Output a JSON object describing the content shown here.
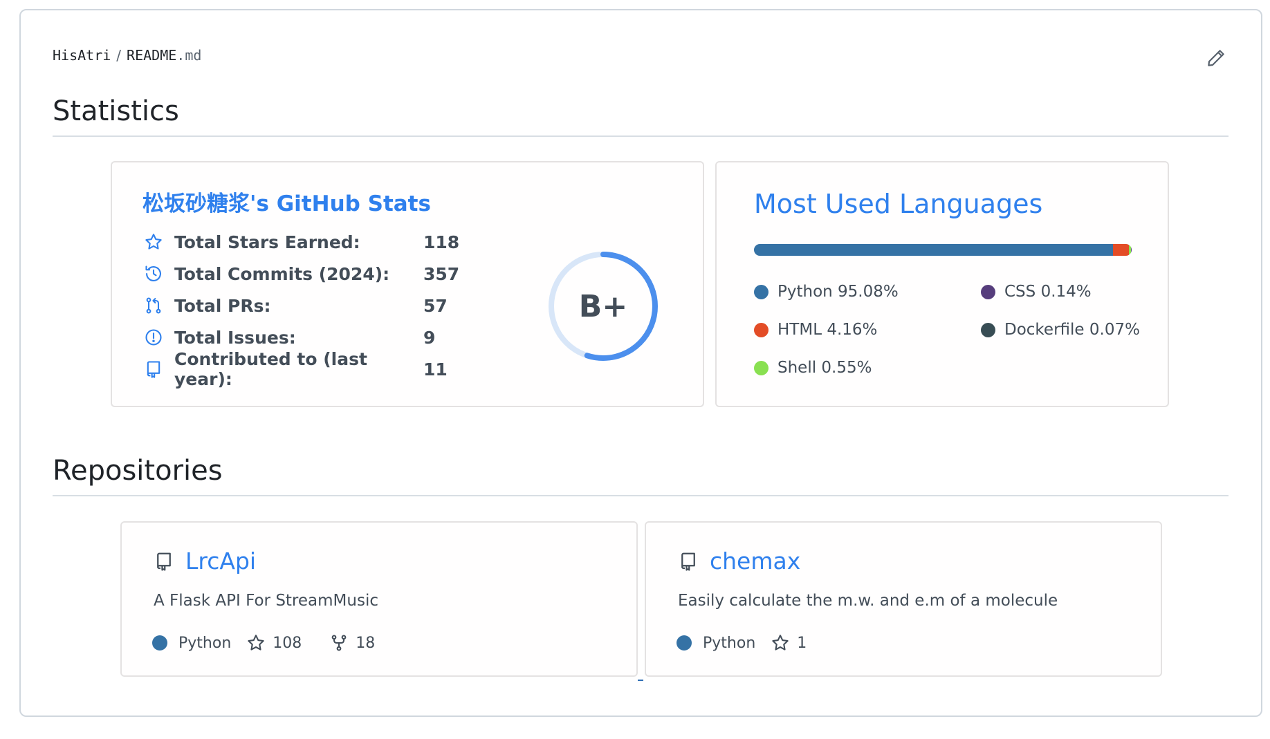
{
  "breadcrumb": {
    "owner": "HisAtri",
    "separator": "/",
    "file_base": "README",
    "file_ext": ".md"
  },
  "sections": {
    "statistics": "Statistics",
    "repositories": "Repositories"
  },
  "stats_card": {
    "title": "松坂砂糖浆's GitHub Stats",
    "rows": [
      {
        "icon": "star-icon",
        "label": "Total Stars Earned:",
        "value": "118"
      },
      {
        "icon": "history-icon",
        "label": "Total Commits (2024):",
        "value": "357"
      },
      {
        "icon": "pull-request-icon",
        "label": "Total PRs:",
        "value": "57"
      },
      {
        "icon": "issue-icon",
        "label": "Total Issues:",
        "value": "9"
      },
      {
        "icon": "repo-icon",
        "label": "Contributed to (last year):",
        "value": "11"
      }
    ],
    "rank": "B+",
    "rank_progress": 0.55
  },
  "languages_card": {
    "title": "Most Used Languages",
    "languages": [
      {
        "name": "Python",
        "percent": 95.08,
        "label": "Python 95.08%",
        "color": "#3572A5"
      },
      {
        "name": "HTML",
        "percent": 4.16,
        "label": "HTML 4.16%",
        "color": "#e34c26"
      },
      {
        "name": "Shell",
        "percent": 0.55,
        "label": "Shell 0.55%",
        "color": "#89e051"
      },
      {
        "name": "CSS",
        "percent": 0.14,
        "label": "CSS 0.14%",
        "color": "#563d7c"
      },
      {
        "name": "Dockerfile",
        "percent": 0.07,
        "label": "Dockerfile 0.07%",
        "color": "#384d54"
      }
    ]
  },
  "repos": [
    {
      "name": "LrcApi",
      "description": "A Flask API For StreamMusic",
      "language": "Python",
      "language_color": "#3572A5",
      "stars": "108",
      "forks": "18"
    },
    {
      "name": "chemax",
      "description": "Easily calculate the m.w. and e.m of a molecule",
      "language": "Python",
      "language_color": "#3572A5",
      "stars": "1"
    }
  ],
  "colors": {
    "accent": "#2f80ed",
    "text": "#434d58",
    "rank_ring": "#4c8fed",
    "rank_track": "#d8e6f8"
  }
}
